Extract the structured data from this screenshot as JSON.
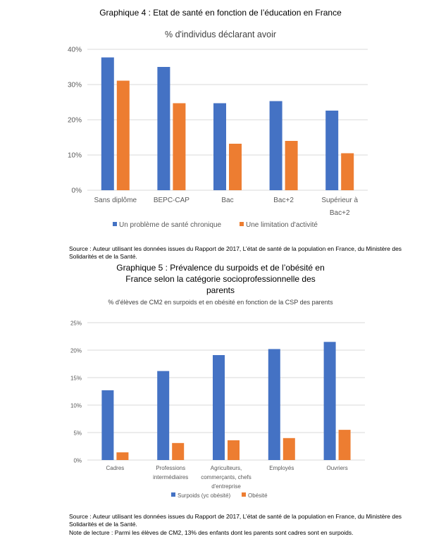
{
  "chart_data": [
    {
      "type": "bar",
      "title": "Graphique 4 : Etat de santé en fonction de l’éducation en France",
      "subtitle": "% d'individus déclarant avoir",
      "categories": [
        "Sans diplôme",
        "BEPC-CAP",
        "Bac",
        "Bac+2",
        "Supérieur à Bac+2"
      ],
      "series": [
        {
          "name": "Un problème de santé chronique",
          "color": "#4472C4",
          "values": [
            37.7,
            35.0,
            24.7,
            25.3,
            22.6
          ]
        },
        {
          "name": "Une limitation d'activité",
          "color": "#ED7D31",
          "values": [
            31.1,
            24.7,
            13.2,
            14.0,
            10.5
          ]
        }
      ],
      "ylim": [
        0,
        40
      ],
      "yticks": [
        "0%",
        "10%",
        "20%",
        "30%",
        "40%"
      ],
      "grid": true,
      "legend": "bottom",
      "source": "Source : Auteur utilisant les données issues du Rapport de 2017, L’état de santé de la population en France, du Ministère des Solidarités et de la Santé."
    },
    {
      "type": "bar",
      "title": "Graphique 5 : Prévalence du surpoids et de l’obésité en France selon la catégorie socioprofessionnelle des parents",
      "subtitle": "% d'élèves de CM2 en surpoids et en obésité en fonction de la CSP des parents",
      "categories": [
        "Cadres",
        "Professions intermédiaires",
        "Agriculteurs, commerçants, chefs d'entreprise",
        "Employés",
        "Ouvriers"
      ],
      "series": [
        {
          "name": "Surpoids (yc obésité)",
          "color": "#4472C4",
          "values": [
            12.7,
            16.2,
            19.1,
            20.2,
            21.5
          ]
        },
        {
          "name": "Obésité",
          "color": "#ED7D31",
          "values": [
            1.4,
            3.1,
            3.6,
            4.0,
            5.5
          ]
        }
      ],
      "ylim": [
        0,
        25
      ],
      "yticks": [
        "0%",
        "5%",
        "10%",
        "15%",
        "20%",
        "25%"
      ],
      "grid": true,
      "legend": "bottom",
      "source": "Source : Auteur utilisant les données issues du Rapport de 2017, L’état de santé de la population en France, du Ministère des Solidarités et de la Santé.",
      "note": "Note de lecture : Parmi les élèves de CM2, 13% des enfants dont les parents sont cadres sont en surpoids."
    }
  ]
}
